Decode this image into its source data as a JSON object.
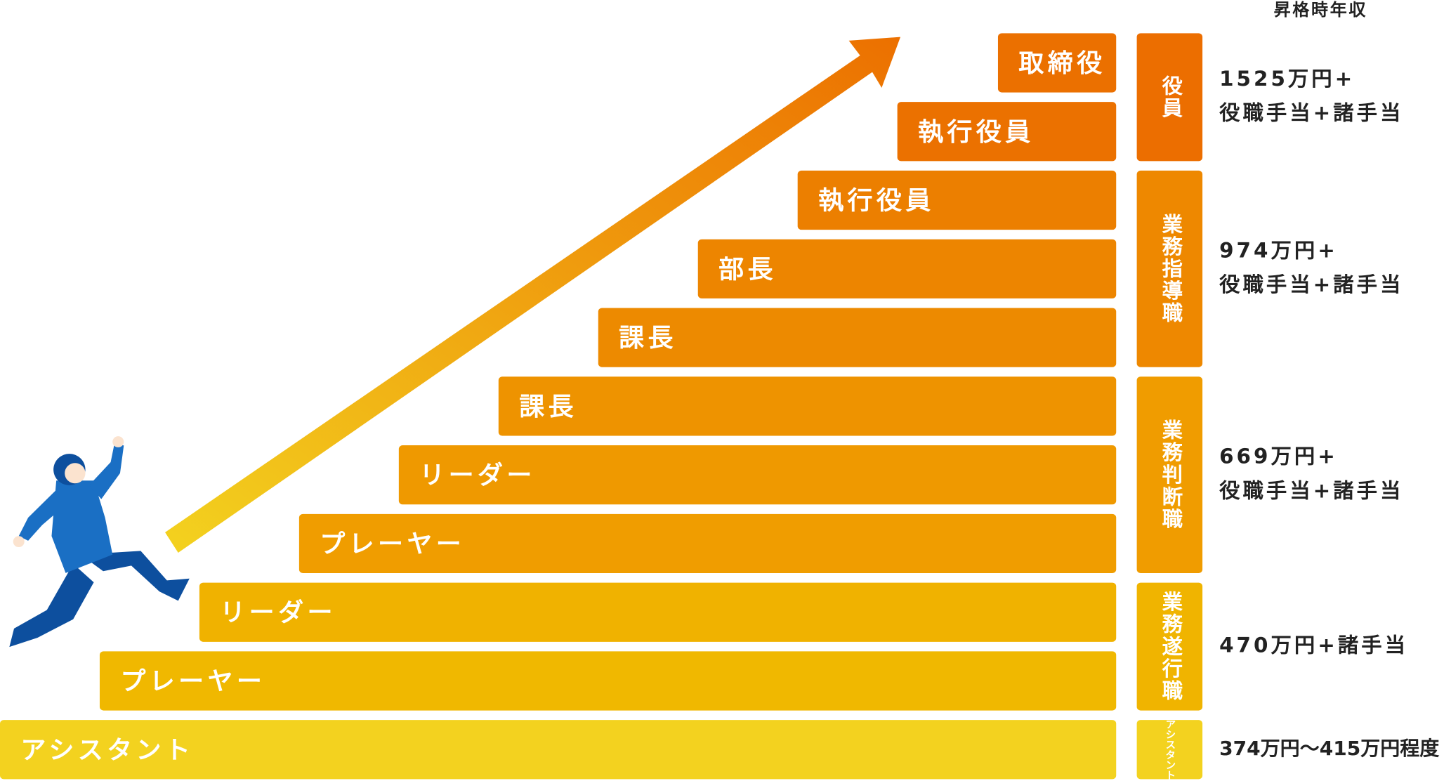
{
  "header": {
    "title": "昇格時年収"
  },
  "steps": [
    {
      "label": "アシスタント",
      "color": "#f3d21f"
    },
    {
      "label": "プレーヤー",
      "color": "#f0b800"
    },
    {
      "label": "リーダー",
      "color": "#f0b200"
    },
    {
      "label": "プレーヤー",
      "color": "#f09d00"
    },
    {
      "label": "リーダー",
      "color": "#ef9900"
    },
    {
      "label": "課長",
      "color": "#ee9300"
    },
    {
      "label": "課長",
      "color": "#ed8a00"
    },
    {
      "label": "部長",
      "color": "#ed8500"
    },
    {
      "label": "執行役員",
      "color": "#ec7f00"
    },
    {
      "label": "執行役員",
      "color": "#eb7100"
    },
    {
      "label": "取締役",
      "color": "#eb7000"
    }
  ],
  "groups": [
    {
      "label": "アシスタント",
      "color": "#f3d21f",
      "salary": [
        "374万円〜415万円程度"
      ]
    },
    {
      "label": "業務遂行職",
      "color": "#f0b400",
      "salary": [
        "470万円+諸手当"
      ]
    },
    {
      "label": "業務判断職",
      "color": "#f09c00",
      "salary": [
        "669万円+",
        "役職手当+諸手当"
      ]
    },
    {
      "label": "業務指導職",
      "color": "#ee8800",
      "salary": [
        "974万円+",
        "役職手当+諸手当"
      ]
    },
    {
      "label": "役員",
      "color": "#ec6e00",
      "salary": [
        "1525万円+",
        "役職手当+諸手当"
      ]
    }
  ]
}
